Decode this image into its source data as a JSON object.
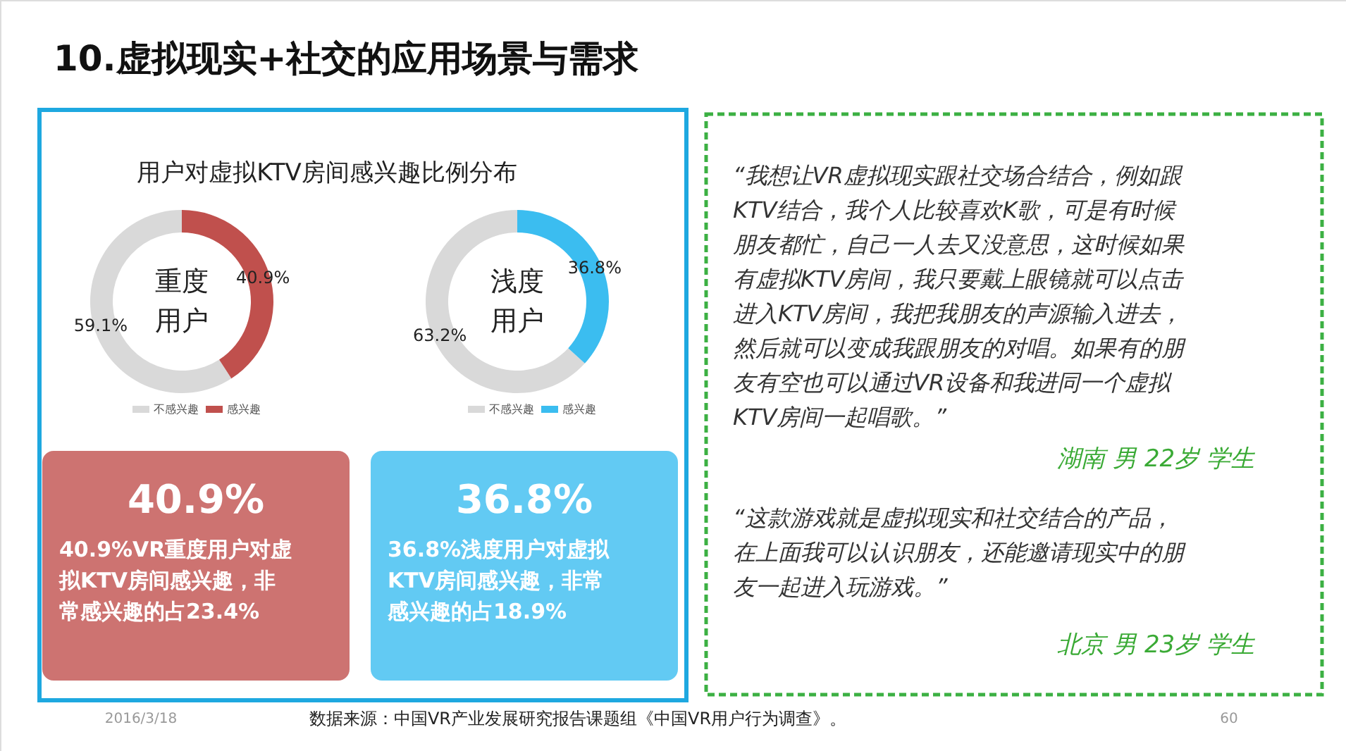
{
  "chart_data": [
    {
      "type": "donut",
      "title": "用户对虚拟KTV房间感兴趣比例分布",
      "categories": [
        "不感兴趣",
        "感兴趣"
      ],
      "values": [
        59.1,
        40.9
      ],
      "colors": [
        "#d9d9d9",
        "#c0504d"
      ],
      "value_labels": [
        "59.1%",
        "40.9%"
      ],
      "legend": "bottom",
      "annotations": [
        "重度用户",
        "40.9%",
        "40.9%VR重度用户对虚拟KTV房间感兴趣，非常感兴趣的占23.4%"
      ]
    },
    {
      "type": "donut",
      "categories": [
        "不感兴趣",
        "感兴趣"
      ],
      "values": [
        63.2,
        36.8
      ],
      "colors": [
        "#d9d9d9",
        "#3bbdf0"
      ],
      "value_labels": [
        "63.2%",
        "36.8%"
      ],
      "legend": "bottom",
      "annotations": [
        "浅度用户",
        "36.8%",
        "36.8%浅度用户对虚拟KTV房间感兴趣，非常感兴趣的占18.9%"
      ]
    },
    {
      "type": "other",
      "title": "10.虚拟现实+社交的应用场景与需求",
      "annotations": [
        "“我想让VR虚拟现实跟社交场合结合，例如跟KTV结合，我个人比较喜欢K歌，可是有时候朋友都忙，自己一人去又没意思，这时候如果有虚拟KTV房间，我只要戴上眼镜就可以点击进入KTV房间，我把我朋友的声源输入进去，然后就可以变成我跟朋友的对唱。如果有的朋友有空也可以通过VR设备和我进同一个虚拟KTV房间一起唱歌。”",
        "湖南 男 22岁 学生",
        "“这款游戏就是虚拟现实和社交结合的产品，在上面我可以认识朋友，还能邀请现实中的朋友一起进入玩游戏。”",
        "北京 男 23岁 学生",
        "2016/3/18",
        "数据来源：中国VR产业发展研究报告课题组《中国VR用户行为调查》。",
        "60"
      ]
    }
  ]
}
